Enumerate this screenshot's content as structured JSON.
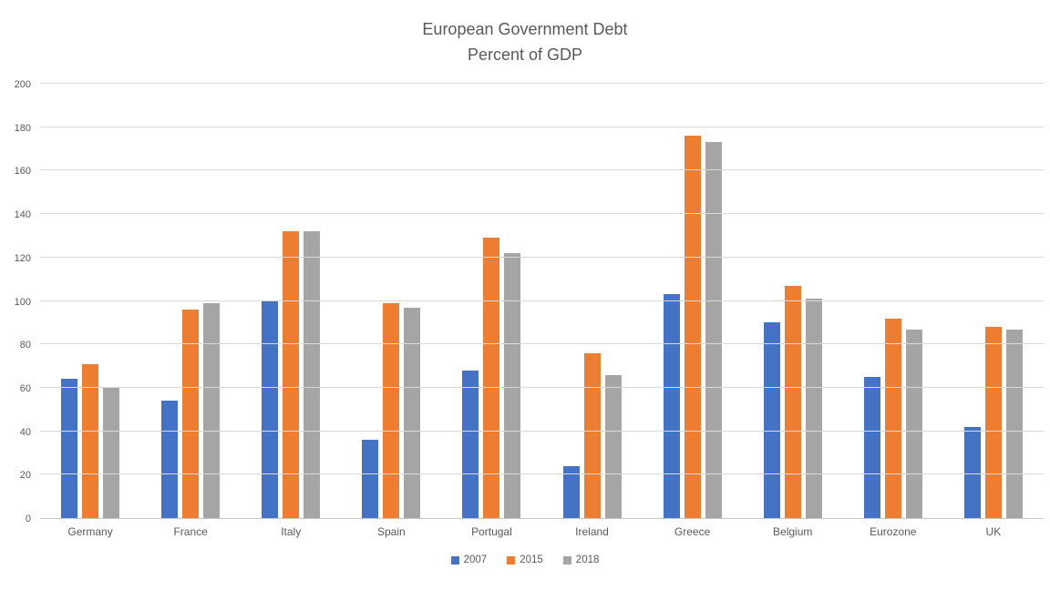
{
  "chart_data": {
    "type": "bar",
    "title": "European Government Debt",
    "subtitle": "Percent of GDP",
    "xlabel": "",
    "ylabel": "",
    "categories": [
      "Germany",
      "France",
      "Italy",
      "Spain",
      "Portugal",
      "Ireland",
      "Greece",
      "Belgium",
      "Eurozone",
      "UK"
    ],
    "series": [
      {
        "name": "2007",
        "color": "#4472C4",
        "values": [
          64,
          54,
          100,
          36,
          68,
          24,
          103,
          90,
          65,
          42
        ]
      },
      {
        "name": "2015",
        "color": "#ED7D31",
        "values": [
          71,
          96,
          132,
          99,
          129,
          76,
          176,
          107,
          92,
          88
        ]
      },
      {
        "name": "2018",
        "color": "#A5A5A5",
        "values": [
          60,
          99,
          132,
          97,
          122,
          66,
          173,
          101,
          87,
          87
        ]
      }
    ],
    "ylim": [
      0,
      200
    ],
    "yticks": [
      0,
      20,
      40,
      60,
      80,
      100,
      120,
      140,
      160,
      180,
      200
    ],
    "grid": true,
    "legend_position": "bottom"
  },
  "colors": {
    "background": "#FFFFFF",
    "text": "#595959",
    "gridline": "#D9D9D9",
    "axis_line": "#C9C7C7"
  }
}
